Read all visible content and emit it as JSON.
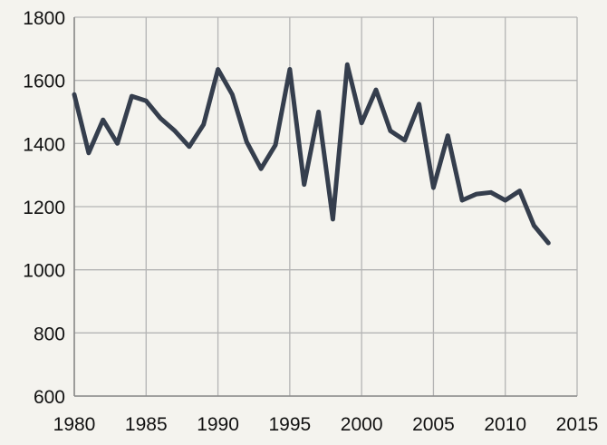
{
  "chart_data": {
    "type": "line",
    "title": "",
    "xlabel": "",
    "ylabel": "",
    "xlim": [
      1980,
      2015
    ],
    "ylim": [
      600,
      1800
    ],
    "x_ticks": [
      1980,
      1985,
      1990,
      1995,
      2000,
      2005,
      2010,
      2015
    ],
    "y_ticks": [
      600,
      800,
      1000,
      1200,
      1400,
      1600,
      1800
    ],
    "grid": true,
    "legend": "none",
    "series": [
      {
        "color": "#353e4d",
        "x": [
          1980,
          1981,
          1982,
          1983,
          1984,
          1985,
          1986,
          1987,
          1988,
          1989,
          1990,
          1991,
          1992,
          1993,
          1994,
          1995,
          1996,
          1997,
          1998,
          1999,
          2000,
          2001,
          2002,
          2003,
          2004,
          2005,
          2006,
          2007,
          2008,
          2009,
          2010,
          2011,
          2012,
          2013
        ],
        "y": [
          1555,
          1370,
          1475,
          1400,
          1550,
          1535,
          1480,
          1440,
          1390,
          1460,
          1635,
          1555,
          1405,
          1320,
          1395,
          1635,
          1270,
          1500,
          1160,
          1650,
          1465,
          1570,
          1440,
          1410,
          1525,
          1260,
          1425,
          1220,
          1240,
          1245,
          1220,
          1250,
          1140,
          1085
        ]
      }
    ]
  }
}
